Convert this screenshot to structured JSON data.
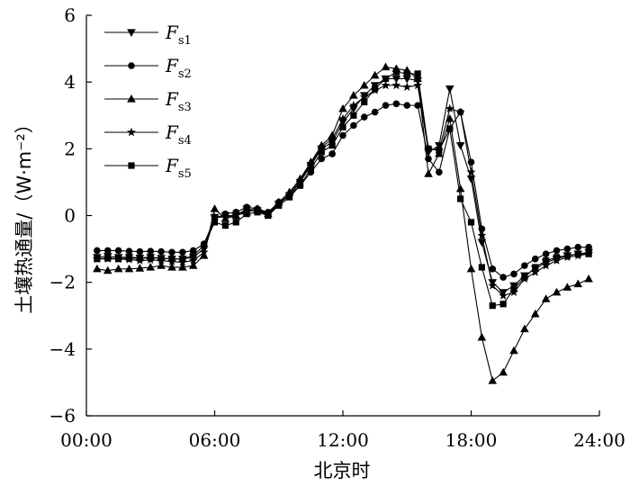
{
  "chart_data": {
    "type": "line",
    "xlabel": "北京时",
    "ylabel": "土壤热通量/（W·m⁻²）",
    "x_ticks": [
      "00:00",
      "06:00",
      "12:00",
      "18:00",
      "24:00"
    ],
    "xlim": [
      0,
      24
    ],
    "ylim": [
      -6,
      6
    ],
    "y_ticks": [
      -6,
      -4,
      -2,
      0,
      2,
      4,
      6
    ],
    "grid": false,
    "legend_position": "top-left",
    "x": [
      0.5,
      1,
      1.5,
      2,
      2.5,
      3,
      3.5,
      4,
      4.5,
      5,
      5.5,
      6,
      6.5,
      7,
      7.5,
      8,
      8.5,
      9,
      9.5,
      10,
      10.5,
      11,
      11.5,
      12,
      12.5,
      13,
      13.5,
      14,
      14.5,
      15,
      15.5,
      16,
      16.5,
      17,
      17.5,
      18,
      18.5,
      19,
      19.5,
      20,
      20.5,
      21,
      21.5,
      22,
      22.5,
      23,
      23.5
    ],
    "series": [
      {
        "name": "F",
        "name_sub": "s1",
        "marker": "triangle-down",
        "values": [
          -1.25,
          -1.22,
          -1.25,
          -1.25,
          -1.27,
          -1.25,
          -1.28,
          -1.3,
          -1.3,
          -1.25,
          -1.0,
          -0.05,
          0.0,
          0.0,
          0.2,
          0.15,
          0.05,
          0.35,
          0.6,
          1.0,
          1.5,
          2.0,
          2.2,
          2.8,
          3.2,
          3.6,
          3.9,
          4.1,
          4.1,
          4.1,
          4.05,
          1.9,
          2.1,
          3.8,
          2.1,
          1.1,
          -0.8,
          -2.0,
          -2.3,
          -2.1,
          -1.8,
          -1.6,
          -1.4,
          -1.3,
          -1.2,
          -1.15,
          -1.1
        ]
      },
      {
        "name": "F",
        "name_sub": "s2",
        "marker": "circle",
        "values": [
          -1.05,
          -1.05,
          -1.05,
          -1.07,
          -1.08,
          -1.07,
          -1.08,
          -1.1,
          -1.1,
          -1.05,
          -0.85,
          -0.1,
          0.05,
          0.1,
          0.25,
          0.2,
          0.1,
          0.4,
          0.6,
          0.9,
          1.3,
          1.7,
          1.85,
          2.4,
          2.7,
          2.95,
          3.1,
          3.3,
          3.35,
          3.3,
          3.3,
          1.7,
          1.3,
          2.6,
          3.1,
          1.6,
          -0.4,
          -1.6,
          -1.85,
          -1.75,
          -1.5,
          -1.3,
          -1.15,
          -1.05,
          -1.0,
          -0.95,
          -0.95
        ]
      },
      {
        "name": "F",
        "name_sub": "s3",
        "marker": "triangle-up",
        "values": [
          -1.6,
          -1.65,
          -1.6,
          -1.6,
          -1.58,
          -1.55,
          -1.5,
          -1.55,
          -1.55,
          -1.5,
          -1.2,
          0.2,
          -0.1,
          0.0,
          0.1,
          0.2,
          0.05,
          0.4,
          0.7,
          1.1,
          1.6,
          2.1,
          2.4,
          3.2,
          3.6,
          3.9,
          4.2,
          4.45,
          4.4,
          4.35,
          4.1,
          1.25,
          1.85,
          2.9,
          0.8,
          -1.6,
          -3.65,
          -4.95,
          -4.7,
          -4.05,
          -3.4,
          -2.95,
          -2.5,
          -2.3,
          -2.15,
          -2.05,
          -1.9
        ]
      },
      {
        "name": "F",
        "name_sub": "s4",
        "marker": "star",
        "values": [
          -1.3,
          -1.3,
          -1.3,
          -1.32,
          -1.35,
          -1.33,
          -1.35,
          -1.38,
          -1.4,
          -1.35,
          -1.1,
          -0.05,
          -0.05,
          0.0,
          0.15,
          0.15,
          0.0,
          0.35,
          0.65,
          1.05,
          1.55,
          2.05,
          2.3,
          2.9,
          3.3,
          3.55,
          3.75,
          3.9,
          3.9,
          3.85,
          3.9,
          2.0,
          1.95,
          3.2,
          3.1,
          1.3,
          -0.6,
          -2.1,
          -2.4,
          -2.3,
          -1.9,
          -1.7,
          -1.5,
          -1.35,
          -1.25,
          -1.2,
          -1.15
        ]
      },
      {
        "name": "F",
        "name_sub": "s5",
        "marker": "square",
        "values": [
          -1.3,
          -1.28,
          -1.3,
          -1.28,
          -1.28,
          -1.27,
          -1.28,
          -1.3,
          -1.3,
          -1.2,
          -0.9,
          -0.2,
          -0.3,
          -0.2,
          0.05,
          0.1,
          0.0,
          0.3,
          0.55,
          0.9,
          1.4,
          1.9,
          2.1,
          2.65,
          3.0,
          3.4,
          3.8,
          4.1,
          4.3,
          4.25,
          4.25,
          2.0,
          1.95,
          2.6,
          0.5,
          -0.2,
          -1.55,
          -2.7,
          -2.65,
          -2.2,
          -1.85,
          -1.55,
          -1.35,
          -1.25,
          -1.2,
          -1.15,
          -1.15
        ]
      }
    ]
  }
}
